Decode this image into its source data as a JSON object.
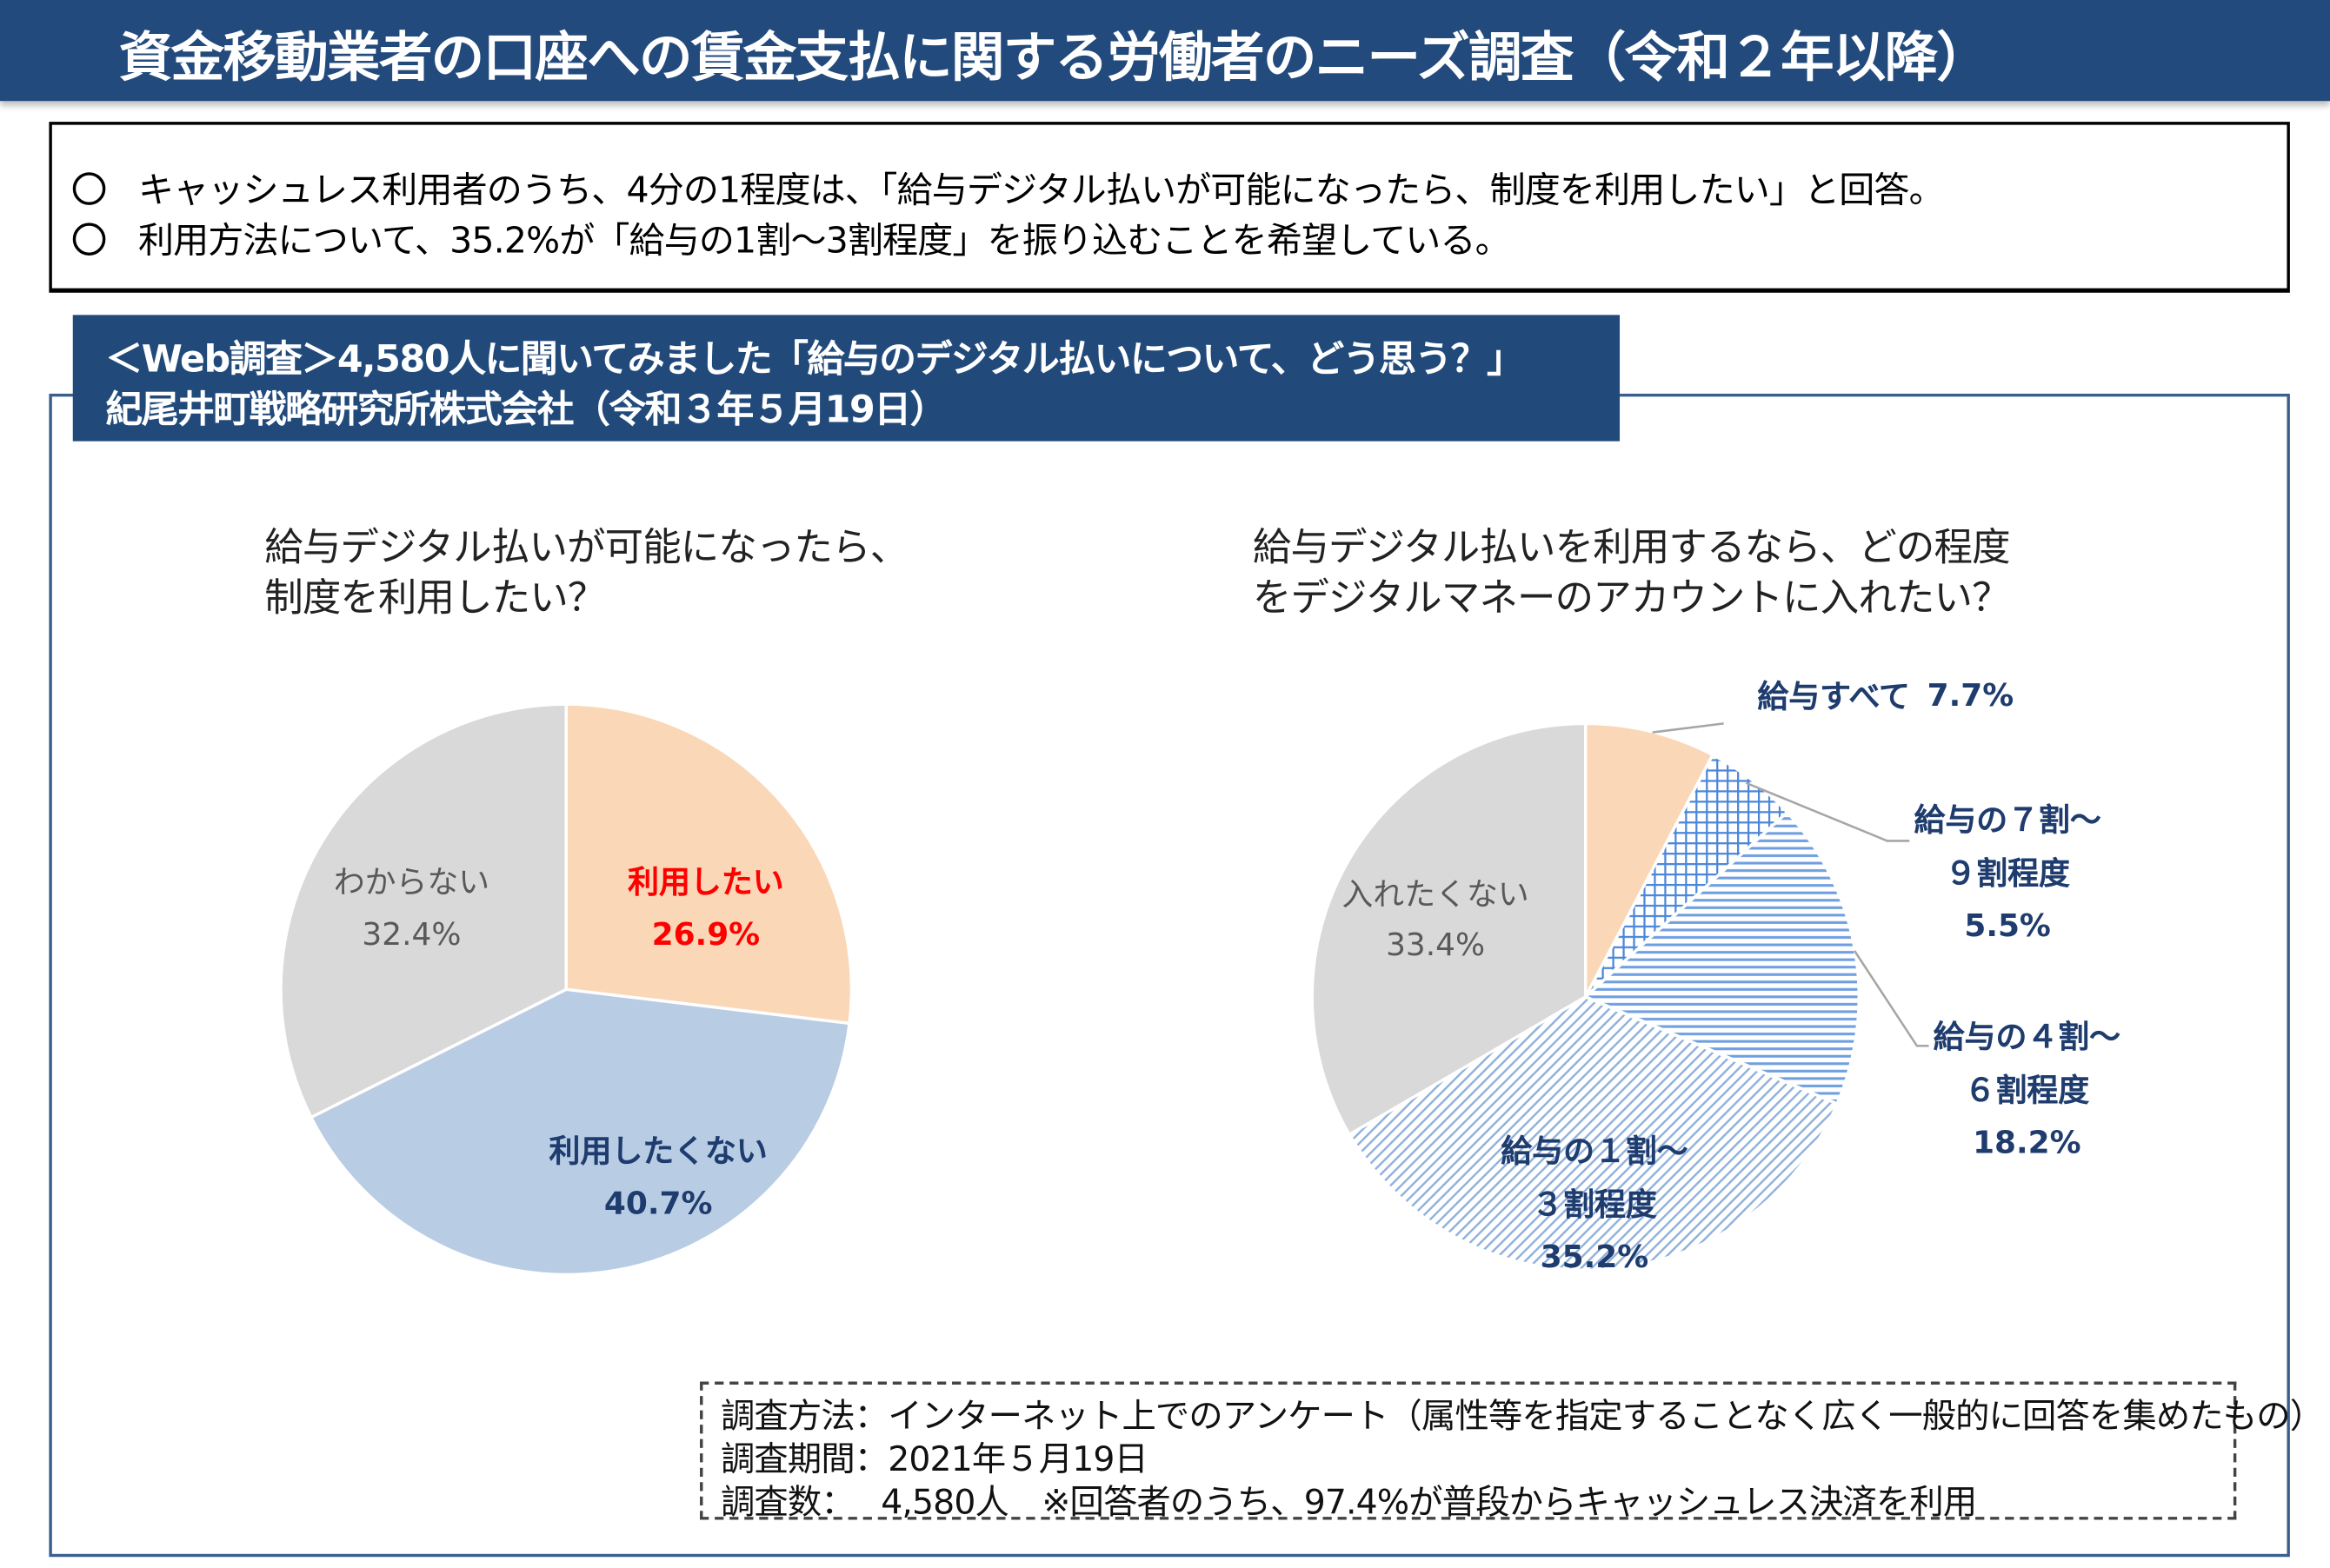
{
  "title": "資金移動業者の口座への賃金支払に関する労働者のニーズ調査（令和２年以降）",
  "summary": [
    "キャッシュレス利用者のうち、4分の1程度は、「給与デジタル払いが可能になったら、制度を利用したい」と回答。",
    "利用方法について、35.2%が「給与の1割〜3割程度」を振り込むことを希望している。"
  ],
  "survey_header": {
    "line1": "＜Web調査＞4,580人に聞いてみました「給与のデジタル払いについて、どう思う？」",
    "line2": "紀尾井町戦略研究所株式会社（令和３年５月19日）"
  },
  "chart_data": [
    {
      "type": "pie",
      "title": "給与デジタル払いが可能になったら、\n制度を利用したい？",
      "slices": [
        {
          "label": "利用したい",
          "value": 26.9,
          "value_label": "26.9%",
          "color": "#fad7b6",
          "text_color": "#ff0000"
        },
        {
          "label": "利用したくない",
          "value": 40.7,
          "value_label": "40.7%",
          "color": "#b8cce4",
          "text_color": "#1f3c6e"
        },
        {
          "label": "わからない",
          "value": 32.4,
          "value_label": "32.4%",
          "color": "#d9d9d9",
          "text_color": "#595959"
        }
      ]
    },
    {
      "type": "pie",
      "title": "給与デジタル払いを利用するなら、どの程度\nをデジタルマネーのアカウントに入れたい？",
      "slices": [
        {
          "label": "給与すべて",
          "value": 7.7,
          "value_label": "7.7%",
          "color": "#fad7b6",
          "pattern": "solid",
          "text_color": "#1f3c6e"
        },
        {
          "label": "給与の７割〜\n９割程度",
          "value": 5.5,
          "value_label": "5.5%",
          "color": "#4a86d8",
          "pattern": "crosshatch",
          "text_color": "#1f3c6e"
        },
        {
          "label": "給与の４割〜\n６割程度",
          "value": 18.2,
          "value_label": "18.2%",
          "color": "#6f9fe0",
          "pattern": "horizontal",
          "text_color": "#1f3c6e"
        },
        {
          "label": "給与の１割〜\n３割程度",
          "value": 35.2,
          "value_label": "35.2%",
          "color": "#8fb0dc",
          "pattern": "diagonal",
          "text_color": "#1f3c6e"
        },
        {
          "label": "入れたくない",
          "value": 33.4,
          "value_label": "33.4%",
          "color": "#d9d9d9",
          "pattern": "solid",
          "text_color": "#595959"
        }
      ]
    }
  ],
  "notes": [
    "調査方法：インターネット上でのアンケート（属性等を指定することなく広く一般的に回答を集めたもの）",
    "調査期間：2021年５月19日",
    "調査数：　 4,580人　※回答者のうち、97.4%が普段からキャッシュレス決済を利用"
  ]
}
